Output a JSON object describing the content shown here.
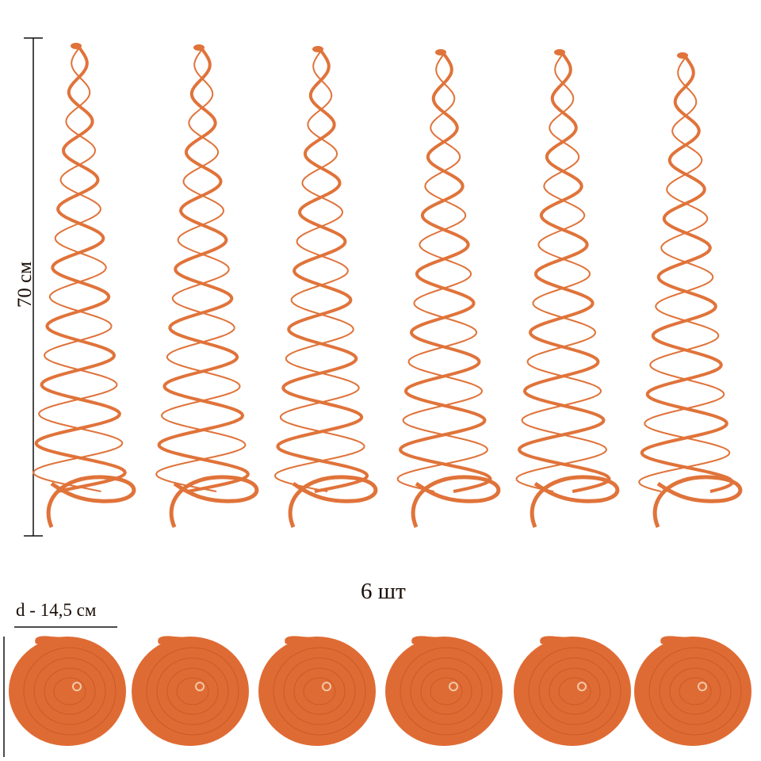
{
  "dimensions": {
    "height_label": "70 см",
    "count_label": "6 шт",
    "diameter_label": "d - 14,5 см"
  },
  "product": {
    "color": "#E0733A",
    "disc_color": "#DF6B34",
    "spiral_count": 6,
    "disc_count": 6
  }
}
